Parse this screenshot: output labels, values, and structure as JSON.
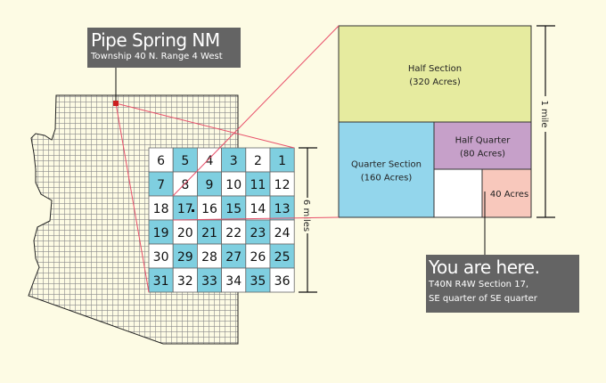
{
  "title": {
    "name": "Pipe Spring NM",
    "subtitle": "Township 40 N. Range 4 West"
  },
  "township": {
    "rows": [
      [
        6,
        5,
        4,
        3,
        2,
        1
      ],
      [
        7,
        8,
        9,
        10,
        11,
        12
      ],
      [
        18,
        17,
        16,
        15,
        14,
        13
      ],
      [
        19,
        20,
        21,
        22,
        23,
        24
      ],
      [
        30,
        29,
        28,
        27,
        26,
        25
      ],
      [
        31,
        32,
        33,
        34,
        35,
        36
      ]
    ],
    "scale_label": "6 miles",
    "highlight_section": 17
  },
  "section": {
    "scale_label": "1 mile",
    "parts": [
      {
        "label": "Half Section",
        "acres": "(320 Acres)",
        "color": "#e6eb9f"
      },
      {
        "label": "Quarter Section",
        "acres": "(160 Acres)",
        "color": "#93d6ec"
      },
      {
        "label": "Half Quarter",
        "acres": "(80 Acres)",
        "color": "#c6a0c9"
      },
      {
        "label": "",
        "acres": "",
        "color": "#ffffff"
      },
      {
        "label": "40 Acres",
        "acres": "",
        "color": "#f8c8bc"
      }
    ]
  },
  "you_are_here": {
    "heading": "You are here.",
    "line1": "T40N R4W Section 17,",
    "line2": "SE quarter of SE quarter"
  },
  "colors": {
    "background": "#fdfbe4",
    "section_blue": "#7fcfe0",
    "callout": "#646464",
    "leader_red": "#e8506a",
    "marker_red": "#cc1f1f"
  }
}
